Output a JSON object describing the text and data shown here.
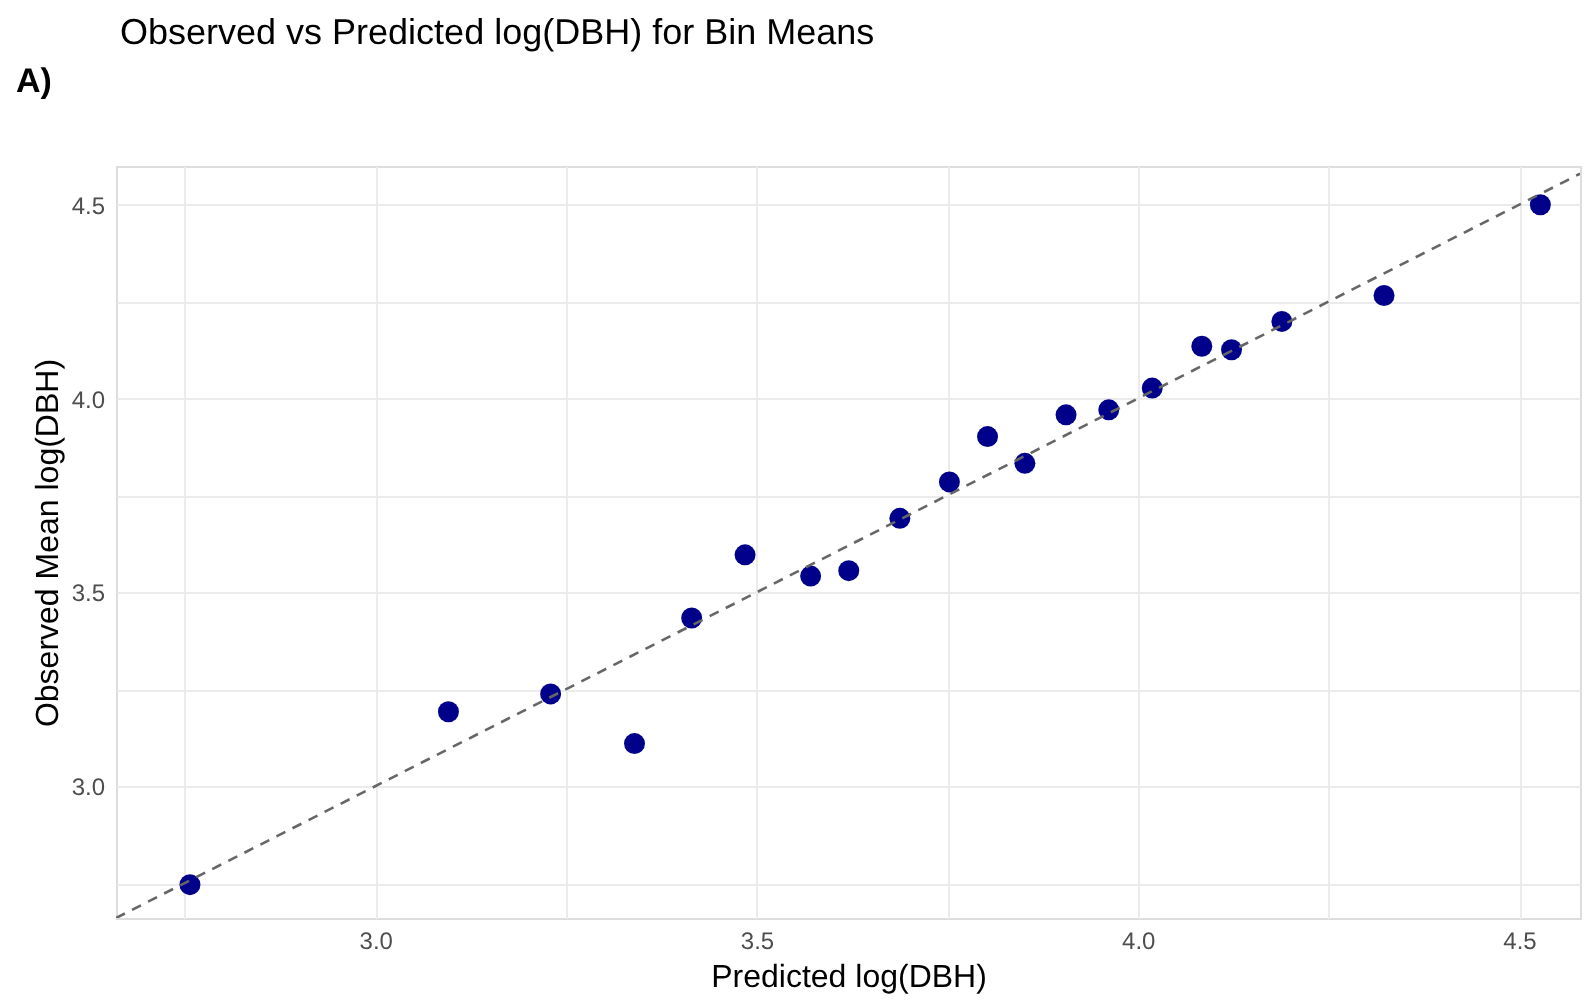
{
  "chart_data": {
    "type": "scatter",
    "title": "Observed vs Predicted log(DBH) for Bin Means",
    "xlabel": "Predicted log(DBH)",
    "ylabel": "Observed Mean log(DBH)",
    "annotations": [
      "A)"
    ],
    "xlim": [
      2.66,
      4.58
    ],
    "ylim": [
      2.66,
      4.6
    ],
    "xticks": [
      {
        "value": 2.75,
        "label": null
      },
      {
        "value": 3,
        "label": "3.0"
      },
      {
        "value": 3.25,
        "label": null
      },
      3.5,
      {
        "value": 3.75,
        "label": null
      },
      {
        "value": 4,
        "label": "4.0"
      },
      {
        "value": 4.25,
        "label": null
      },
      4.5
    ],
    "yticks": [
      {
        "value": 2.75,
        "label": null
      },
      {
        "value": 3,
        "label": "3.0"
      },
      {
        "value": 3.25,
        "label": null
      },
      3.5,
      {
        "value": 3.75,
        "label": null
      },
      {
        "value": 4,
        "label": "4.0"
      },
      {
        "value": 4.25,
        "label": null
      },
      4.5
    ],
    "grid": true,
    "series": [
      {
        "marker": "circle",
        "color": "#00008b",
        "x": [
          2.757,
          3.096,
          3.23,
          3.34,
          3.415,
          3.485,
          3.571,
          3.621,
          3.688,
          3.753,
          3.803,
          3.852,
          3.906,
          3.962,
          4.019,
          4.084,
          4.123,
          4.189,
          4.323,
          4.528
        ],
        "values": [
          2.746,
          3.192,
          3.238,
          3.11,
          3.434,
          3.597,
          3.542,
          3.556,
          3.691,
          3.785,
          3.902,
          3.833,
          3.958,
          3.971,
          4.027,
          4.135,
          4.126,
          4.199,
          4.266,
          4.5
        ]
      },
      {
        "type": "line",
        "color": "#666666",
        "line_style": "dashed",
        "x": [
          2.66,
          4.58
        ],
        "values": [
          2.66,
          4.58
        ]
      }
    ]
  }
}
